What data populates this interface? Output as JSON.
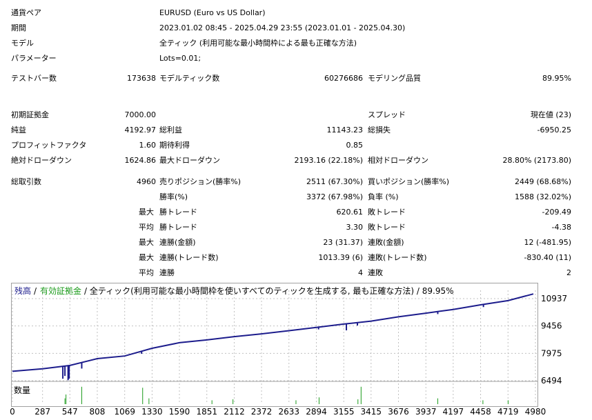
{
  "report": {
    "symbol_label": "通貨ペア",
    "symbol_value": "EURUSD (Euro vs US Dollar)",
    "period_label": "期間",
    "period_value": "2023.01.02 08:45 - 2025.04.29 23:55 (2023.01.01 - 2025.04.30)",
    "model_label": "モデル",
    "model_value": "全ティック (利用可能な最小時間枠による最も正確な方法)",
    "params_label": "パラメーター",
    "params_value": "Lots=0.01;",
    "bars_label": "テストバー数",
    "bars_value": "173638",
    "ticks_label": "モデルティック数",
    "ticks_value": "60276686",
    "quality_label": "モデリング品質",
    "quality_value": "89.95%",
    "deposit_label": "初期証拠金",
    "deposit_value": "7000.00",
    "spread_label": "スプレッド",
    "spread_value": "現在値 (23)",
    "net_label": "純益",
    "net_value": "4192.97",
    "gross_profit_label": "総利益",
    "gross_profit_value": "11143.23",
    "gross_loss_label": "総損失",
    "gross_loss_value": "-6950.25",
    "pf_label": "プロフィットファクタ",
    "pf_value": "1.60",
    "expected_label": "期待利得",
    "expected_value": "0.85",
    "abs_dd_label": "絶対ドローダウン",
    "abs_dd_value": "1624.86",
    "max_dd_label": "最大ドローダウン",
    "max_dd_value": "2193.16 (22.18%)",
    "rel_dd_label": "相対ドローダウン",
    "rel_dd_value": "28.80% (2173.80)",
    "total_trades_label": "総取引数",
    "total_trades_value": "4960",
    "short_label": "売りポジション(勝率%)",
    "short_value": "2511 (67.30%)",
    "long_label": "買いポジション(勝率%)",
    "long_value": "2449 (68.68%)",
    "winrate_label": "勝率(%)",
    "winrate_value": "3372 (67.98%)",
    "lossrate_label": "負率 (%)",
    "lossrate_value": "1588 (32.02%)",
    "max_label": "最大",
    "avg_label": "平均",
    "largest_win_label": "勝トレード",
    "largest_win_value": "620.61",
    "largest_loss_label": "敗トレード",
    "largest_loss_value": "-209.49",
    "avg_win_label": "勝トレード",
    "avg_win_value": "3.30",
    "avg_loss_label": "敗トレード",
    "avg_loss_value": "-4.38",
    "max_cons_wins_label": "連勝(金額)",
    "max_cons_wins_value": "23 (31.37)",
    "max_cons_losses_label": "連敗(金額)",
    "max_cons_losses_value": "12 (-481.95)",
    "max_cons_profit_label": "連勝(トレード数)",
    "max_cons_profit_value": "1013.39 (6)",
    "max_cons_loss_label": "連敗(トレード数)",
    "max_cons_loss_value": "-830.40 (11)",
    "avg_cons_wins_label": "連勝",
    "avg_cons_wins_value": "4",
    "avg_cons_losses_label": "連敗",
    "avg_cons_losses_value": "2"
  },
  "chart": {
    "legend_balance": "残高",
    "legend_sep1": "/",
    "legend_equity": "有効証拠金",
    "legend_rest": "/ 全ティック(利用可能な最小時間枠を使いすべてのティックを生成する, 最も正確な方法) / 89.95%",
    "volume_label": "数量",
    "colors": {
      "balance": "#1c1c8c",
      "equity": "#1a9a1a",
      "volume": "#1a9a1a",
      "grid": "#c0c0c0"
    }
  },
  "chart_data": {
    "type": "line",
    "y_ticks": [
      "10937",
      "9456",
      "7975",
      "6494"
    ],
    "ylim": [
      6494,
      10937
    ],
    "x_ticks": [
      "0",
      "287",
      "547",
      "808",
      "1069",
      "1330",
      "1590",
      "1851",
      "2112",
      "2372",
      "2633",
      "2894",
      "3155",
      "3415",
      "3676",
      "3937",
      "4197",
      "4458",
      "4719",
      "4980"
    ],
    "xlim": [
      0,
      4980
    ],
    "series": [
      {
        "name": "残高",
        "x": [
          0,
          287,
          547,
          808,
          1069,
          1330,
          1590,
          1851,
          2112,
          2372,
          2633,
          2894,
          3155,
          3415,
          3676,
          3937,
          4197,
          4458,
          4719,
          4960
        ],
        "y": [
          7000,
          7140,
          7320,
          7690,
          7830,
          8250,
          8550,
          8700,
          8880,
          9030,
          9200,
          9380,
          9560,
          9720,
          9950,
          10150,
          10350,
          10600,
          10830,
          11190
        ]
      }
    ],
    "dips": [
      [
        480,
        6600
      ],
      [
        500,
        6750
      ],
      [
        530,
        6520
      ],
      [
        540,
        6600
      ],
      [
        660,
        7150
      ],
      [
        1230,
        7950
      ],
      [
        2915,
        9270
      ],
      [
        3180,
        9220
      ],
      [
        3285,
        9480
      ],
      [
        4050,
        10100
      ],
      [
        4485,
        10480
      ]
    ],
    "volume_spikes": [
      [
        500,
        0.3
      ],
      [
        510,
        0.5
      ],
      [
        660,
        0.9
      ],
      [
        1240,
        0.85
      ],
      [
        1300,
        0.3
      ],
      [
        1900,
        0.2
      ],
      [
        2100,
        0.25
      ],
      [
        2700,
        0.2
      ],
      [
        2920,
        0.35
      ],
      [
        3290,
        0.25
      ],
      [
        3320,
        0.9
      ],
      [
        4050,
        0.3
      ],
      [
        4480,
        0.2
      ],
      [
        4720,
        0.2
      ]
    ]
  }
}
